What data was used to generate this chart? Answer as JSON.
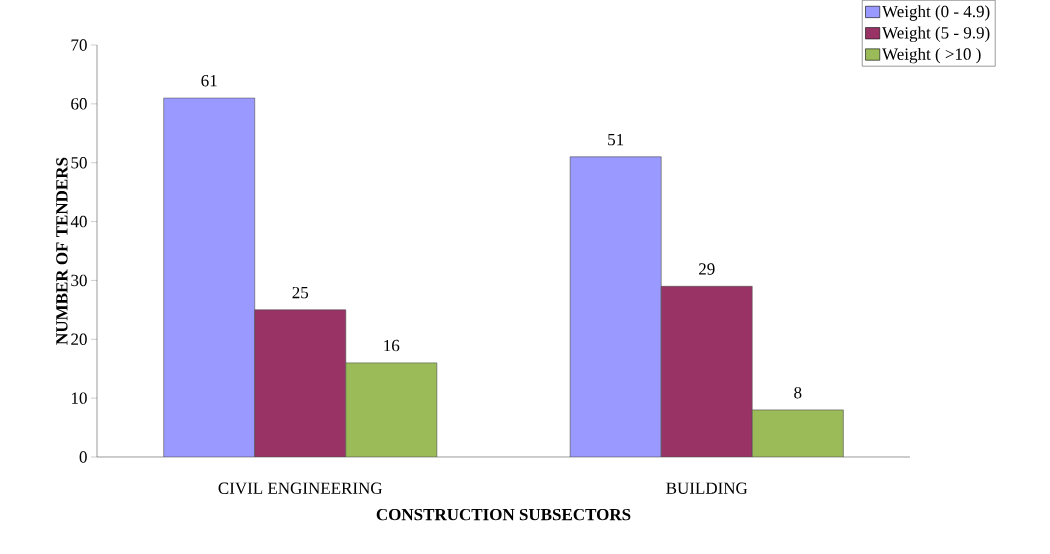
{
  "chart_data": {
    "type": "bar",
    "xlabel": "CONSTRUCTION SUBSECTORS",
    "ylabel": "NUMBER OF TENDERS",
    "categories": [
      "CIVIL ENGINEERING",
      "BUILDING"
    ],
    "series": [
      {
        "name": "Weight (0 - 4.9)",
        "color": "#9999ff",
        "values": [
          61,
          51
        ]
      },
      {
        "name": "Weight (5 - 9.9)",
        "color": "#993366",
        "values": [
          25,
          29
        ]
      },
      {
        "name": "Weight ( >10 )",
        "color": "#9bbb59",
        "values": [
          16,
          8
        ]
      }
    ],
    "ylim": [
      0,
      70
    ],
    "yticks": [
      0,
      10,
      20,
      30,
      40,
      50,
      60,
      70
    ],
    "data_labels": true,
    "legend": "top right",
    "grid": false
  }
}
